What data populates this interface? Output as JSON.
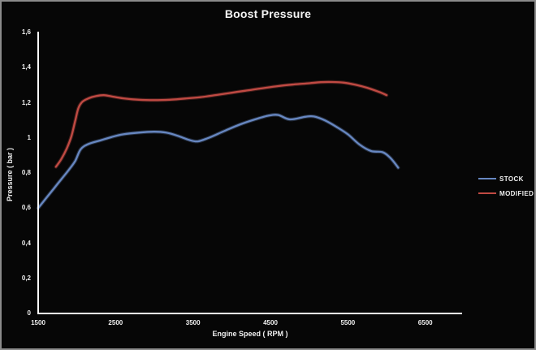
{
  "window": {
    "background": "#060606",
    "border_color": "#8a8a8a"
  },
  "colors": {
    "axis": "#ffffff",
    "text": "#f0f0f0",
    "stock_blue": "#6787c1",
    "modified_red": "#c04a43"
  },
  "chart_data": {
    "type": "line",
    "title": "Boost Pressure",
    "xlabel": "Engine Speed ( RPM )",
    "ylabel": "Pressure ( bar )",
    "xlim": [
      1500,
      6975
    ],
    "ylim": [
      0,
      1.6
    ],
    "grid": false,
    "background": "black",
    "legend_position": "middle-right",
    "x_ticks": {
      "values": [
        1500,
        2500,
        3500,
        4500,
        5500,
        6500
      ],
      "labels": [
        "1500",
        "2500",
        "3500",
        "4500",
        "5500",
        "6500"
      ]
    },
    "y_ticks": {
      "values": [
        0,
        0.2,
        0.4,
        0.6,
        0.8,
        1.0,
        1.2,
        1.4,
        1.6
      ],
      "labels": [
        "0",
        "0,2",
        "0,4",
        "0,6",
        "0,8",
        "1",
        "1,2",
        "1,4",
        "1,6"
      ]
    },
    "series": [
      {
        "name": "STOCK",
        "color": "#6787c1",
        "points": [
          [
            1500,
            0.6
          ],
          [
            1600,
            0.655
          ],
          [
            1700,
            0.71
          ],
          [
            1800,
            0.765
          ],
          [
            1900,
            0.82
          ],
          [
            1980,
            0.87
          ],
          [
            2050,
            0.935
          ],
          [
            2150,
            0.965
          ],
          [
            2300,
            0.985
          ],
          [
            2450,
            1.005
          ],
          [
            2600,
            1.02
          ],
          [
            2800,
            1.03
          ],
          [
            3000,
            1.035
          ],
          [
            3150,
            1.03
          ],
          [
            3300,
            1.012
          ],
          [
            3450,
            0.988
          ],
          [
            3560,
            0.98
          ],
          [
            3700,
            1.0
          ],
          [
            3900,
            1.038
          ],
          [
            4100,
            1.075
          ],
          [
            4300,
            1.105
          ],
          [
            4480,
            1.127
          ],
          [
            4600,
            1.13
          ],
          [
            4750,
            1.105
          ],
          [
            4950,
            1.12
          ],
          [
            5060,
            1.122
          ],
          [
            5200,
            1.1
          ],
          [
            5350,
            1.063
          ],
          [
            5500,
            1.02
          ],
          [
            5650,
            0.962
          ],
          [
            5800,
            0.925
          ],
          [
            5950,
            0.918
          ],
          [
            6050,
            0.885
          ],
          [
            6150,
            0.83
          ]
        ]
      },
      {
        "name": "MODIFIED",
        "color": "#c04a43",
        "points": [
          [
            1730,
            0.835
          ],
          [
            1800,
            0.88
          ],
          [
            1870,
            0.94
          ],
          [
            1930,
            1.01
          ],
          [
            1980,
            1.1
          ],
          [
            2020,
            1.17
          ],
          [
            2070,
            1.205
          ],
          [
            2150,
            1.225
          ],
          [
            2250,
            1.238
          ],
          [
            2350,
            1.243
          ],
          [
            2450,
            1.236
          ],
          [
            2600,
            1.225
          ],
          [
            2800,
            1.217
          ],
          [
            3000,
            1.215
          ],
          [
            3200,
            1.217
          ],
          [
            3400,
            1.224
          ],
          [
            3600,
            1.232
          ],
          [
            3800,
            1.244
          ],
          [
            4000,
            1.257
          ],
          [
            4200,
            1.27
          ],
          [
            4400,
            1.283
          ],
          [
            4600,
            1.295
          ],
          [
            4800,
            1.304
          ],
          [
            5000,
            1.311
          ],
          [
            5150,
            1.317
          ],
          [
            5300,
            1.318
          ],
          [
            5450,
            1.314
          ],
          [
            5600,
            1.302
          ],
          [
            5750,
            1.285
          ],
          [
            5900,
            1.262
          ],
          [
            6000,
            1.243
          ]
        ]
      }
    ]
  }
}
